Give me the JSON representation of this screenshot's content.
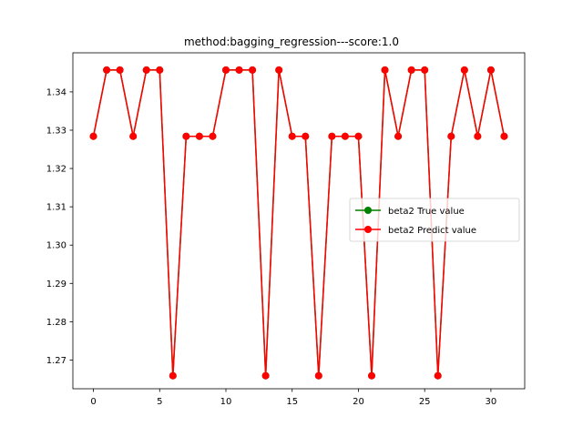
{
  "chart_data": {
    "type": "line",
    "title": "method:bagging_regression---score:1.0",
    "xlabel": "",
    "ylabel": "",
    "xlim": [
      -1.55,
      32.55
    ],
    "ylim": [
      1.2625,
      1.3502
    ],
    "xticks": [
      0,
      5,
      10,
      15,
      20,
      25,
      30
    ],
    "yticks": [
      1.27,
      1.28,
      1.29,
      1.3,
      1.31,
      1.32,
      1.33,
      1.34
    ],
    "ytick_labels": [
      "1.27",
      "1.28",
      "1.29",
      "1.30",
      "1.31",
      "1.32",
      "1.33",
      "1.34"
    ],
    "grid": false,
    "legend_position": "center right",
    "x": [
      0,
      1,
      2,
      3,
      4,
      5,
      6,
      7,
      8,
      9,
      10,
      11,
      12,
      13,
      14,
      15,
      16,
      17,
      18,
      19,
      20,
      21,
      22,
      23,
      24,
      25,
      26,
      27,
      28,
      29,
      30,
      31
    ],
    "series": [
      {
        "name": "beta2 True value",
        "color": "#008000",
        "marker": "circle",
        "values": [
          1.3284,
          1.3457,
          1.3457,
          1.3284,
          1.3457,
          1.3457,
          1.2659,
          1.3284,
          1.3284,
          1.3284,
          1.3457,
          1.3457,
          1.3457,
          1.2659,
          1.3457,
          1.3284,
          1.3284,
          1.2659,
          1.3284,
          1.3284,
          1.3284,
          1.2659,
          1.3457,
          1.3284,
          1.3457,
          1.3457,
          1.2659,
          1.3284,
          1.3457,
          1.3284,
          1.3457,
          1.3284
        ]
      },
      {
        "name": "beta2 Predict value",
        "color": "#ff0000",
        "marker": "circle",
        "values": [
          1.3284,
          1.3457,
          1.3457,
          1.3284,
          1.3457,
          1.3457,
          1.2659,
          1.3284,
          1.3284,
          1.3284,
          1.3457,
          1.3457,
          1.3457,
          1.2659,
          1.3457,
          1.3284,
          1.3284,
          1.2659,
          1.3284,
          1.3284,
          1.3284,
          1.2659,
          1.3457,
          1.3284,
          1.3457,
          1.3457,
          1.2659,
          1.3284,
          1.3457,
          1.3284,
          1.3457,
          1.3284
        ]
      }
    ]
  }
}
